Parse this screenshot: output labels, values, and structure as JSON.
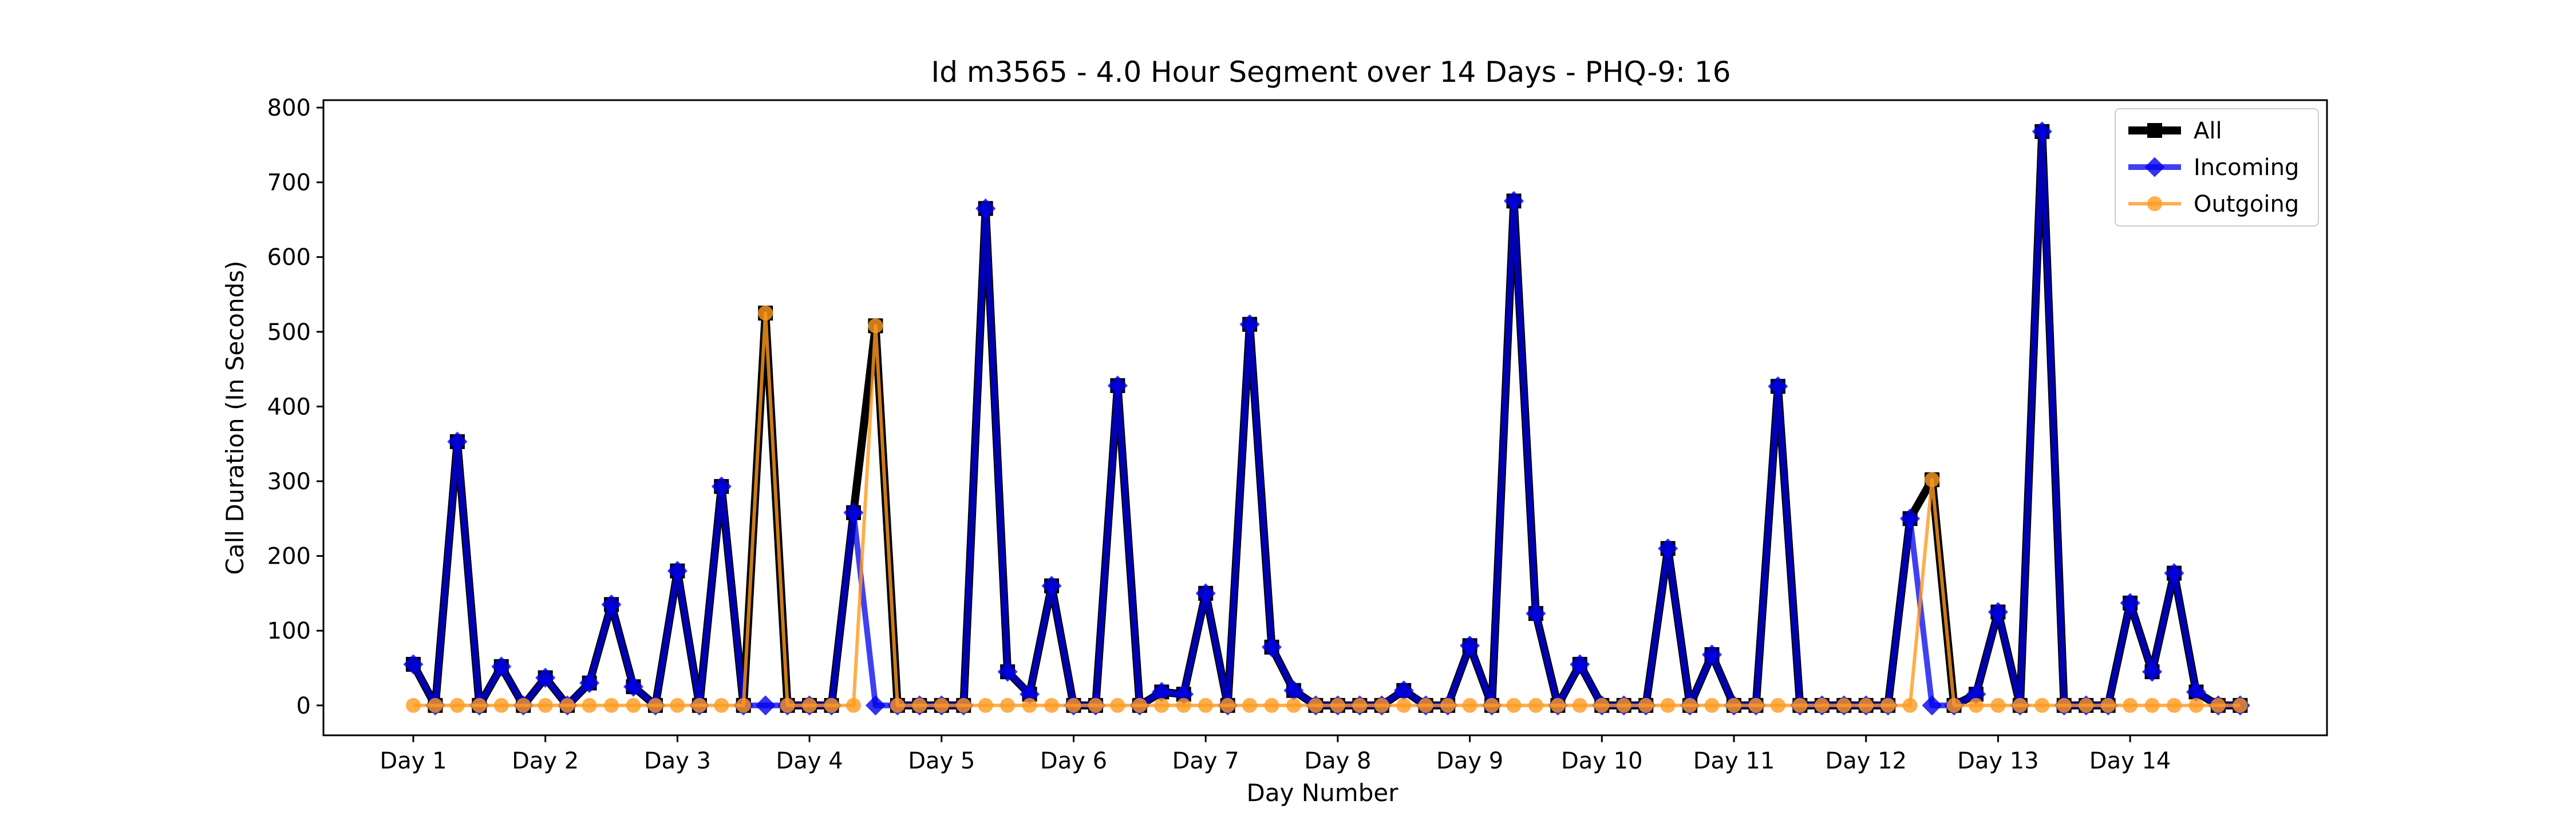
{
  "chart_data": {
    "type": "line",
    "title": "Id m3565 - 4.0 Hour Segment over 14 Days - PHQ-9: 16",
    "xlabel": "Day Number",
    "ylabel": "Call Duration (In Seconds)",
    "ylim": [
      -40,
      810
    ],
    "yticks": [
      0,
      100,
      200,
      300,
      400,
      500,
      600,
      700,
      800
    ],
    "xticks": [
      "Day 1",
      "Day 2",
      "Day 3",
      "Day 4",
      "Day 5",
      "Day 6",
      "Day 7",
      "Day 8",
      "Day 9",
      "Day 10",
      "Day 11",
      "Day 12",
      "Day 13",
      "Day 14"
    ],
    "segments_per_day": 6,
    "grid": false,
    "legend_position": "top-right",
    "series": [
      {
        "name": "All",
        "color": "#000000",
        "marker": "square",
        "values": [
          55,
          0,
          353,
          0,
          52,
          0,
          37,
          0,
          30,
          135,
          25,
          0,
          180,
          0,
          293,
          0,
          525,
          0,
          0,
          0,
          258,
          508,
          0,
          0,
          0,
          0,
          665,
          45,
          15,
          160,
          0,
          0,
          428,
          0,
          18,
          15,
          150,
          0,
          510,
          78,
          20,
          0,
          0,
          0,
          0,
          20,
          0,
          0,
          80,
          0,
          675,
          123,
          0,
          55,
          0,
          0,
          0,
          210,
          0,
          68,
          0,
          0,
          427,
          0,
          0,
          0,
          0,
          0,
          250,
          302,
          0,
          15,
          125,
          0,
          768,
          0,
          0,
          0,
          137,
          45,
          177,
          18,
          0,
          0
        ]
      },
      {
        "name": "Incoming",
        "color": "#0000ee",
        "marker": "diamond",
        "values": [
          55,
          0,
          353,
          0,
          52,
          0,
          37,
          0,
          30,
          135,
          25,
          0,
          180,
          0,
          293,
          0,
          0,
          0,
          0,
          0,
          258,
          0,
          0,
          0,
          0,
          0,
          665,
          45,
          15,
          160,
          0,
          0,
          428,
          0,
          18,
          15,
          150,
          0,
          510,
          78,
          20,
          0,
          0,
          0,
          0,
          20,
          0,
          0,
          80,
          0,
          675,
          123,
          0,
          55,
          0,
          0,
          0,
          210,
          0,
          68,
          0,
          0,
          427,
          0,
          0,
          0,
          0,
          0,
          250,
          0,
          0,
          15,
          125,
          0,
          768,
          0,
          0,
          0,
          137,
          45,
          177,
          18,
          0,
          0
        ]
      },
      {
        "name": "Outgoing",
        "color": "#ff9a1f",
        "marker": "circle",
        "values": [
          0,
          0,
          0,
          0,
          0,
          0,
          0,
          0,
          0,
          0,
          0,
          0,
          0,
          0,
          0,
          0,
          525,
          0,
          0,
          0,
          0,
          508,
          0,
          0,
          0,
          0,
          0,
          0,
          0,
          0,
          0,
          0,
          0,
          0,
          0,
          0,
          0,
          0,
          0,
          0,
          0,
          0,
          0,
          0,
          0,
          0,
          0,
          0,
          0,
          0,
          0,
          0,
          0,
          0,
          0,
          0,
          0,
          0,
          0,
          0,
          0,
          0,
          0,
          0,
          0,
          0,
          0,
          0,
          0,
          302,
          0,
          0,
          0,
          0,
          0,
          0,
          0,
          0,
          0,
          0,
          0,
          0,
          0,
          0
        ]
      }
    ]
  }
}
